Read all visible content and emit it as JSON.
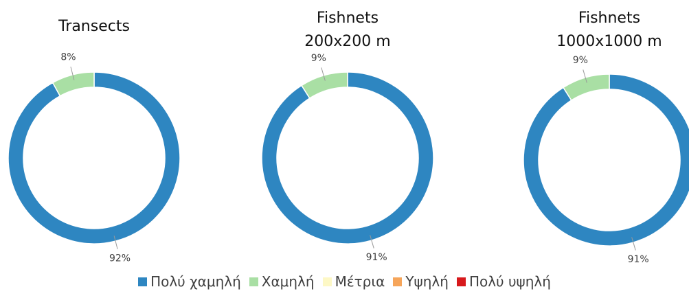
{
  "legend": {
    "categories": [
      "Πολύ χαμηλή",
      "Χαμηλή",
      "Μέτρια",
      "Υψηλή",
      "Πολύ υψηλή"
    ],
    "colors": [
      "#2e86c1",
      "#a9dfa4",
      "#fdf8c6",
      "#f6a55a",
      "#d7191c"
    ]
  },
  "chart_data": [
    {
      "type": "donut",
      "title": "Transects",
      "values": [
        92,
        8,
        0,
        0,
        0
      ],
      "value_labels": [
        "92%",
        "8%",
        null,
        null,
        null
      ]
    },
    {
      "type": "donut",
      "title": "Fishnets 200x200 m",
      "values": [
        91,
        9,
        0,
        0,
        0
      ],
      "value_labels": [
        "91%",
        "9%",
        null,
        null,
        null
      ]
    },
    {
      "type": "donut",
      "title": "Fishnets 1000x1000 m",
      "values": [
        91,
        9,
        0,
        0,
        0
      ],
      "value_labels": [
        "91%",
        "9%",
        null,
        null,
        null
      ]
    }
  ]
}
